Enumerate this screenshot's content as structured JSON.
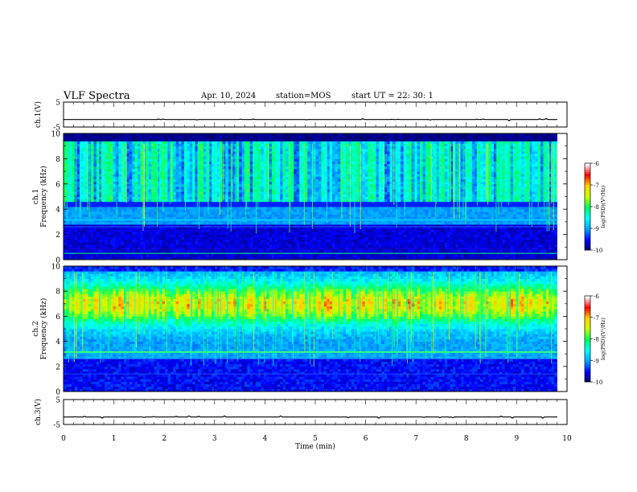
{
  "header": {
    "title": "VLF Spectra",
    "date": "Apr. 10, 2024",
    "station": "station=MOS",
    "start_ut": "start UT =  22: 30: 1"
  },
  "colors": {
    "spectrogram_scale": [
      "#000050",
      "#0000ff",
      "#00a0ff",
      "#00ffff",
      "#00ff60",
      "#c8ff00",
      "#ffd200",
      "#ff0000",
      "#ffffff"
    ]
  },
  "chart_data": [
    {
      "type": "line",
      "name": "panel-ch1-voltage",
      "ylabel": "ch.1(V)",
      "ylim": [
        -5,
        5
      ],
      "yticks": [
        5,
        -5
      ],
      "xlim": [
        0,
        10
      ],
      "trace": "flat line near -2 V with small spikes"
    },
    {
      "type": "heatmap",
      "name": "panel-ch1-spectrogram",
      "ylabel": [
        "ch.1",
        "Frequency (kHz)"
      ],
      "ylim": [
        0,
        10
      ],
      "yticks": [
        0,
        2,
        4,
        6,
        8,
        10
      ],
      "xlim": [
        0,
        10
      ],
      "data_end_min": 9.8,
      "colorbar": {
        "label": "log(PSD)(V²/Hz)",
        "range": [
          -10,
          -6
        ],
        "ticks": [
          -6,
          -7,
          -8,
          -9,
          -10
        ]
      },
      "description": "Broadband impulsive emissions 4.5-9.5 kHz; band near 3.2 kHz; lines near 0.5 kHz"
    },
    {
      "type": "heatmap",
      "name": "panel-ch2-spectrogram",
      "ylabel": [
        "ch.2",
        "Frequency (kHz)"
      ],
      "ylim": [
        0,
        10
      ],
      "yticks": [
        0,
        2,
        4,
        6,
        8,
        10
      ],
      "xlim": [
        0,
        10
      ],
      "data_end_min": 9.8,
      "colorbar": {
        "label": "log(PSD)(V²/Hz)",
        "range": [
          -10,
          -6
        ],
        "ticks": [
          -6,
          -7,
          -8,
          -9,
          -10
        ]
      },
      "description": "Intense broadband emissions peaking 6-8 kHz; band near 3.2 kHz"
    },
    {
      "type": "line",
      "name": "panel-ch3-voltage",
      "ylabel": "ch.3(V)",
      "ylim": [
        -5,
        5
      ],
      "yticks": [
        5,
        -5
      ],
      "xlim": [
        0,
        10
      ],
      "xlabel": "Time (min)",
      "xticks": [
        0,
        1,
        2,
        3,
        4,
        5,
        6,
        7,
        8,
        9,
        10
      ],
      "trace": "flat line near -2 V with small spikes"
    }
  ]
}
